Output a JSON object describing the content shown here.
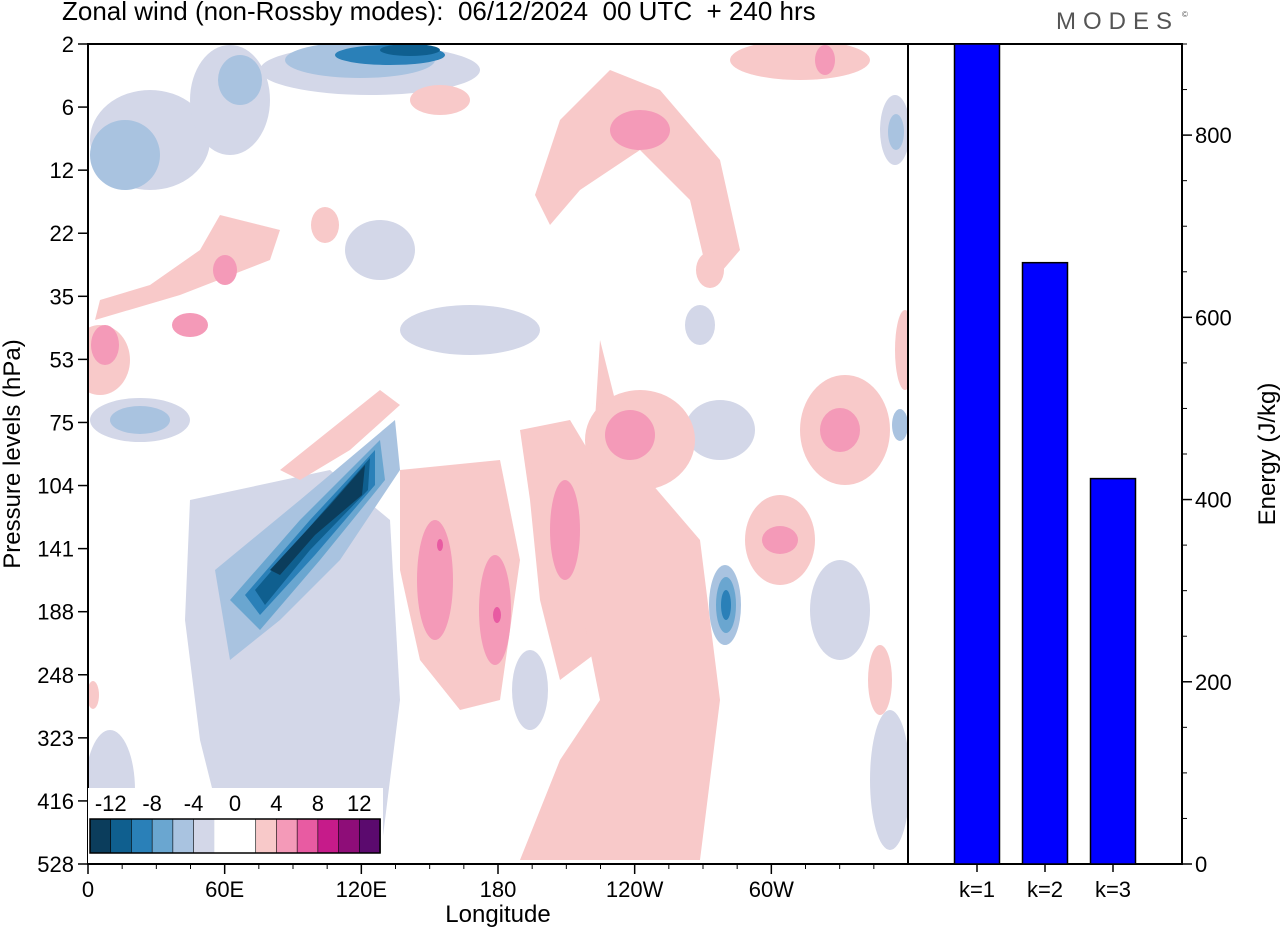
{
  "header": {
    "title": "Zonal wind (non-Rossby modes):  06/12/2024  00 UTC  + 240 hrs",
    "brand": "MODES",
    "brand_mark": "©"
  },
  "chart_data": [
    {
      "type": "heatmap",
      "title": "Zonal wind (non-Rossby modes):  06/12/2024  00 UTC  + 240 hrs",
      "xlabel": "Longitude",
      "ylabel": "Pressure levels (hPa)",
      "x_ticks": [
        "0",
        "60E",
        "120E",
        "180",
        "120W",
        "60W"
      ],
      "x_tick_degrees": [
        0,
        60,
        120,
        180,
        240,
        300
      ],
      "x_range_degrees": [
        0,
        360
      ],
      "y_ticks": [
        "2",
        "6",
        "12",
        "22",
        "35",
        "53",
        "75",
        "104",
        "141",
        "188",
        "248",
        "323",
        "416",
        "528"
      ],
      "colorbar": {
        "labels": [
          "-12",
          "-8",
          "-4",
          "0",
          "4",
          "8",
          "12"
        ],
        "colors": [
          "#0b3d5c",
          "#0f5f8f",
          "#2a80b8",
          "#6aa6d0",
          "#a9c3e0",
          "#d3d7e8",
          "#ffffff",
          "#ffffff",
          "#f8c9c9",
          "#f49ab8",
          "#e85ba2",
          "#c61b8a",
          "#8e0d78",
          "#5b0a6e"
        ]
      },
      "features": [
        {
          "level": -12,
          "lon": 107,
          "p": 118
        },
        {
          "level": -11,
          "lon": 90,
          "p": 150
        },
        {
          "level": -10,
          "lon": 78,
          "p": 172
        },
        {
          "level": -6,
          "lon": 132,
          "p": 2.6
        },
        {
          "level": -6,
          "lon": 278,
          "p": 188
        },
        {
          "level": -4,
          "lon": 15,
          "p": 12
        },
        {
          "level": -4,
          "lon": 30,
          "p": 75
        },
        {
          "level": -3,
          "lon": 150,
          "p": 42
        },
        {
          "level": 5,
          "lon": 150,
          "p": 150
        },
        {
          "level": 5,
          "lon": 208,
          "p": 168
        },
        {
          "level": 4,
          "lon": 242,
          "p": 82
        },
        {
          "level": 4,
          "lon": 325,
          "p": 85
        },
        {
          "level": 4,
          "lon": 60,
          "p": 30
        },
        {
          "level": 4,
          "lon": 235,
          "p": 9
        },
        {
          "level": 3,
          "lon": 250,
          "p": 330
        }
      ]
    },
    {
      "type": "bar",
      "categories": [
        "k=1",
        "k=2",
        "k=3"
      ],
      "values": [
        900,
        660,
        423
      ],
      "ylabel": "Energy (J/kg)",
      "ylim": [
        0,
        900
      ],
      "y_ticks": [
        0,
        200,
        400,
        600,
        800
      ],
      "bar_color": "#0000ff"
    }
  ]
}
